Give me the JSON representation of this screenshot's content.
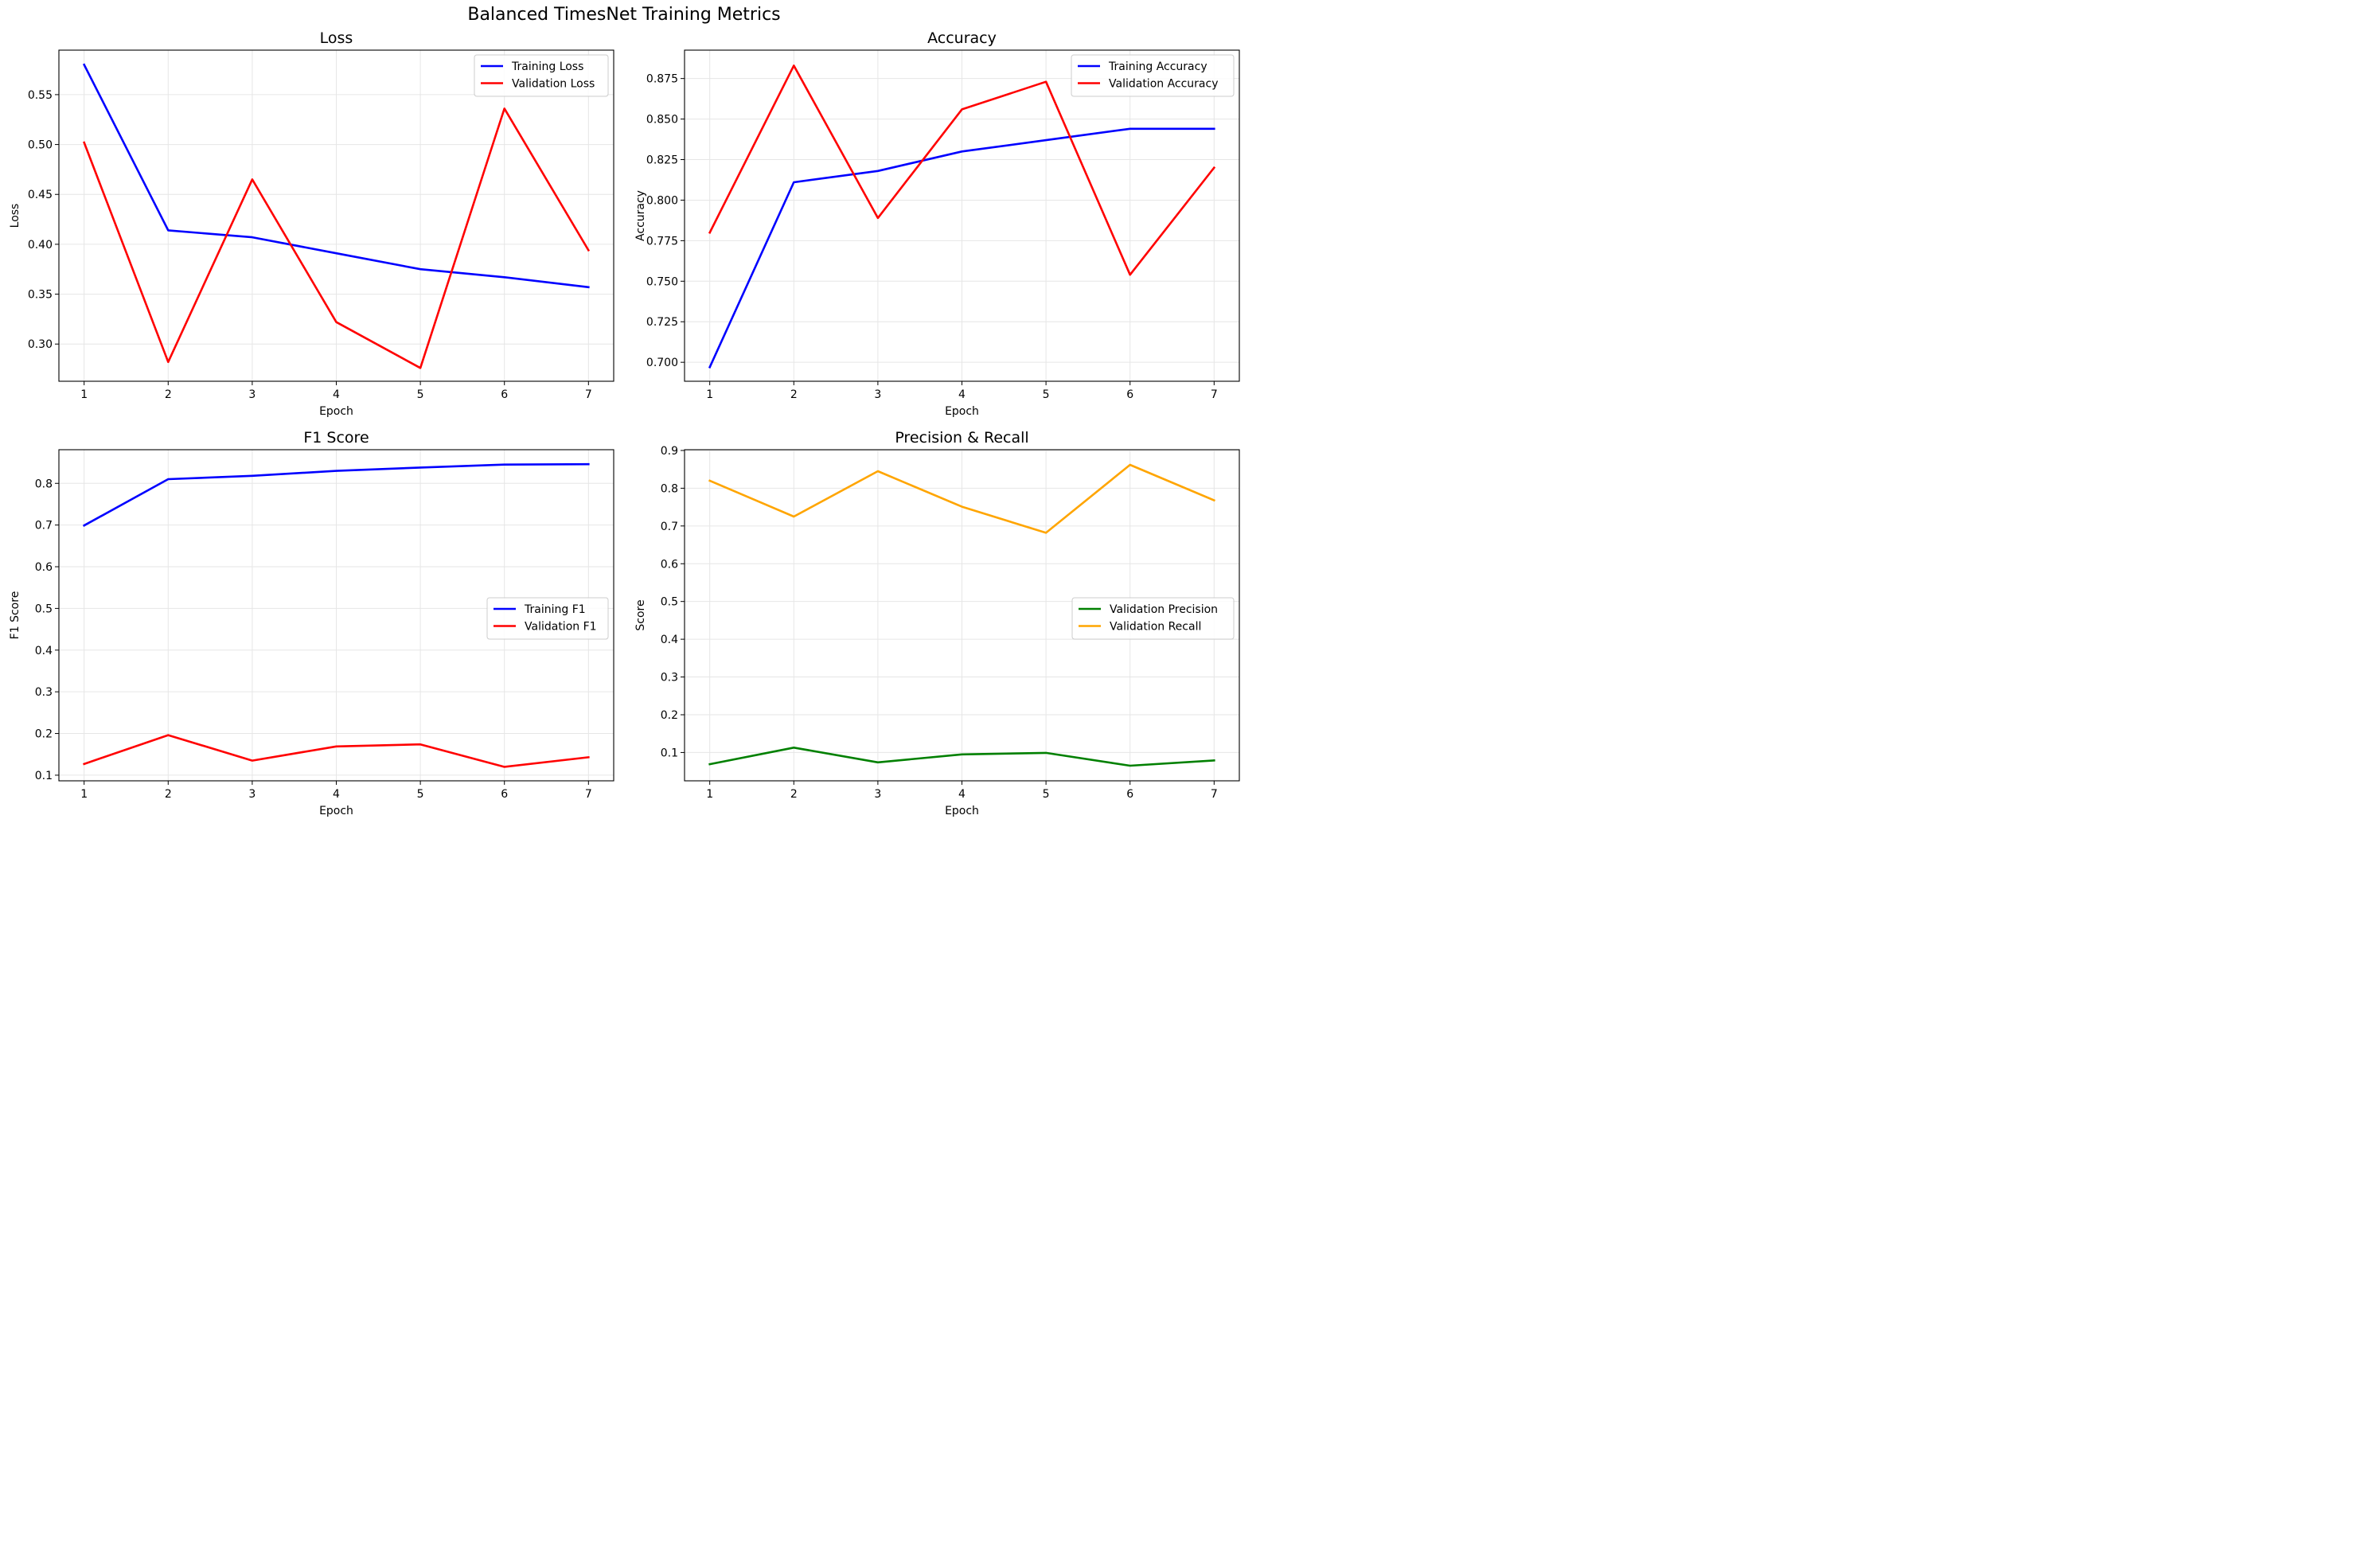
{
  "figure": {
    "title": "Balanced TimesNet Training Metrics"
  },
  "chart_data": [
    {
      "type": "line",
      "title": "Loss",
      "xlabel": "Epoch",
      "ylabel": "Loss",
      "x": [
        1,
        2,
        3,
        4,
        5,
        6,
        7
      ],
      "xticks": [
        1,
        2,
        3,
        4,
        5,
        6,
        7
      ],
      "xlim": [
        0.7,
        7.3
      ],
      "ylim": [
        0.2627,
        0.5946
      ],
      "yticks": [
        0.3,
        0.35,
        0.4,
        0.45,
        0.5,
        0.55
      ],
      "ytick_decimals": 2,
      "grid": true,
      "legend_position": "upper-right",
      "series": [
        {
          "name": "Training Loss",
          "color": "#0000ff",
          "values": [
            0.58,
            0.414,
            0.407,
            0.391,
            0.375,
            0.367,
            0.357
          ]
        },
        {
          "name": "Validation Loss",
          "color": "#ff0000",
          "values": [
            0.502,
            0.282,
            0.465,
            0.322,
            0.276,
            0.536,
            0.394
          ]
        }
      ]
    },
    {
      "type": "line",
      "title": "Accuracy",
      "xlabel": "Epoch",
      "ylabel": "Accuracy",
      "x": [
        1,
        2,
        3,
        4,
        5,
        6,
        7
      ],
      "xticks": [
        1,
        2,
        3,
        4,
        5,
        6,
        7
      ],
      "xlim": [
        0.7,
        7.3
      ],
      "ylim": [
        0.6883,
        0.8925
      ],
      "yticks": [
        0.7,
        0.725,
        0.75,
        0.775,
        0.8,
        0.825,
        0.85,
        0.875
      ],
      "ytick_decimals": 3,
      "grid": true,
      "legend_position": "upper-right",
      "series": [
        {
          "name": "Training Accuracy",
          "color": "#0000ff",
          "values": [
            0.697,
            0.811,
            0.818,
            0.83,
            0.837,
            0.844,
            0.844
          ]
        },
        {
          "name": "Validation Accuracy",
          "color": "#ff0000",
          "values": [
            0.78,
            0.883,
            0.789,
            0.856,
            0.873,
            0.754,
            0.82
          ]
        }
      ]
    },
    {
      "type": "line",
      "title": "F1 Score",
      "xlabel": "Epoch",
      "ylabel": "F1 Score",
      "x": [
        1,
        2,
        3,
        4,
        5,
        6,
        7
      ],
      "xticks": [
        1,
        2,
        3,
        4,
        5,
        6,
        7
      ],
      "xlim": [
        0.7,
        7.3
      ],
      "ylim": [
        0.0865,
        0.8807
      ],
      "yticks": [
        0.1,
        0.2,
        0.3,
        0.4,
        0.5,
        0.6,
        0.7,
        0.8
      ],
      "ytick_decimals": 1,
      "grid": true,
      "legend_position": "center-right",
      "series": [
        {
          "name": "Training F1",
          "color": "#0000ff",
          "values": [
            0.699,
            0.81,
            0.818,
            0.83,
            0.838,
            0.845,
            0.846
          ]
        },
        {
          "name": "Validation F1",
          "color": "#ff0000",
          "values": [
            0.127,
            0.196,
            0.135,
            0.169,
            0.174,
            0.12,
            0.143
          ]
        }
      ]
    },
    {
      "type": "line",
      "title": "Precision & Recall",
      "xlabel": "Epoch",
      "ylabel": "Score",
      "x": [
        1,
        2,
        3,
        4,
        5,
        6,
        7
      ],
      "xticks": [
        1,
        2,
        3,
        4,
        5,
        6,
        7
      ],
      "xlim": [
        0.7,
        7.3
      ],
      "ylim": [
        0.025,
        0.902
      ],
      "yticks": [
        0.1,
        0.2,
        0.3,
        0.4,
        0.5,
        0.6,
        0.7,
        0.8,
        0.9
      ],
      "ytick_decimals": 1,
      "grid": true,
      "legend_position": "center-right",
      "series": [
        {
          "name": "Validation Precision",
          "color": "#008000",
          "values": [
            0.069,
            0.113,
            0.074,
            0.095,
            0.099,
            0.065,
            0.079
          ]
        },
        {
          "name": "Validation Recall",
          "color": "#ffa500",
          "values": [
            0.82,
            0.725,
            0.845,
            0.751,
            0.682,
            0.862,
            0.768
          ]
        }
      ]
    }
  ]
}
